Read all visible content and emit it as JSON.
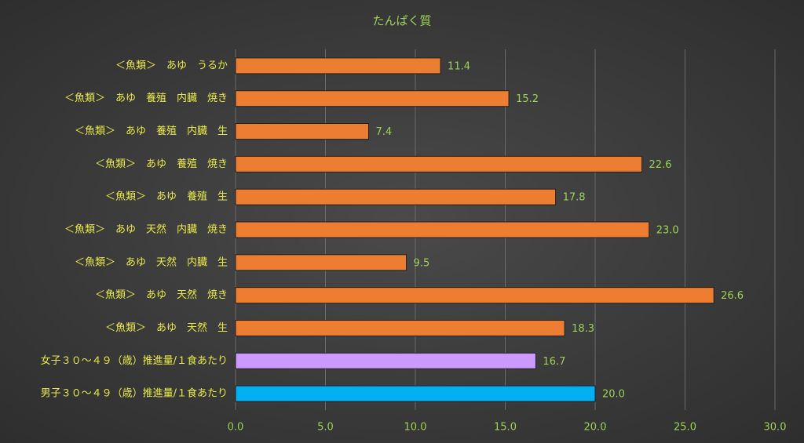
{
  "chart_data": {
    "type": "hbar",
    "title": "たんぱく質",
    "categories": [
      "＜魚類＞　あゆ　うるか",
      "＜魚類＞　あゆ　養殖　内臓　焼き",
      "＜魚類＞　あゆ　養殖　内臓　生",
      "＜魚類＞　あゆ　養殖　焼き",
      "＜魚類＞　あゆ　養殖　生",
      "＜魚類＞　あゆ　天然　内臓　焼き",
      "＜魚類＞　あゆ　天然　内臓　生",
      "＜魚類＞　あゆ　天然　焼き",
      "＜魚類＞　あゆ　天然　生",
      "女子３０～４９（歳）推進量/１食あたり",
      "男子３０～４９（歳）推進量/１食あたり"
    ],
    "values": [
      11.4,
      15.2,
      7.4,
      22.6,
      17.8,
      23.0,
      9.5,
      26.6,
      18.3,
      16.7,
      20.0
    ],
    "value_labels": [
      "11.4",
      "15.2",
      "7.4",
      "22.6",
      "17.8",
      "23.0",
      "9.5",
      "26.6",
      "18.3",
      "16.7",
      "20.0"
    ],
    "colors": [
      "#ed7d31",
      "#ed7d31",
      "#ed7d31",
      "#ed7d31",
      "#ed7d31",
      "#ed7d31",
      "#ed7d31",
      "#ed7d31",
      "#ed7d31",
      "#cc99ff",
      "#00b0f0"
    ],
    "xlim": [
      0,
      30
    ],
    "xticks": [
      {
        "value": 0,
        "label": "0.0"
      },
      {
        "value": 5,
        "label": "5.0"
      },
      {
        "value": 10,
        "label": "10.0"
      },
      {
        "value": 15,
        "label": "15.0"
      },
      {
        "value": 20,
        "label": "20.0"
      },
      {
        "value": 25,
        "label": "25.0"
      },
      {
        "value": 30,
        "label": "30.0"
      }
    ],
    "grid": true
  }
}
